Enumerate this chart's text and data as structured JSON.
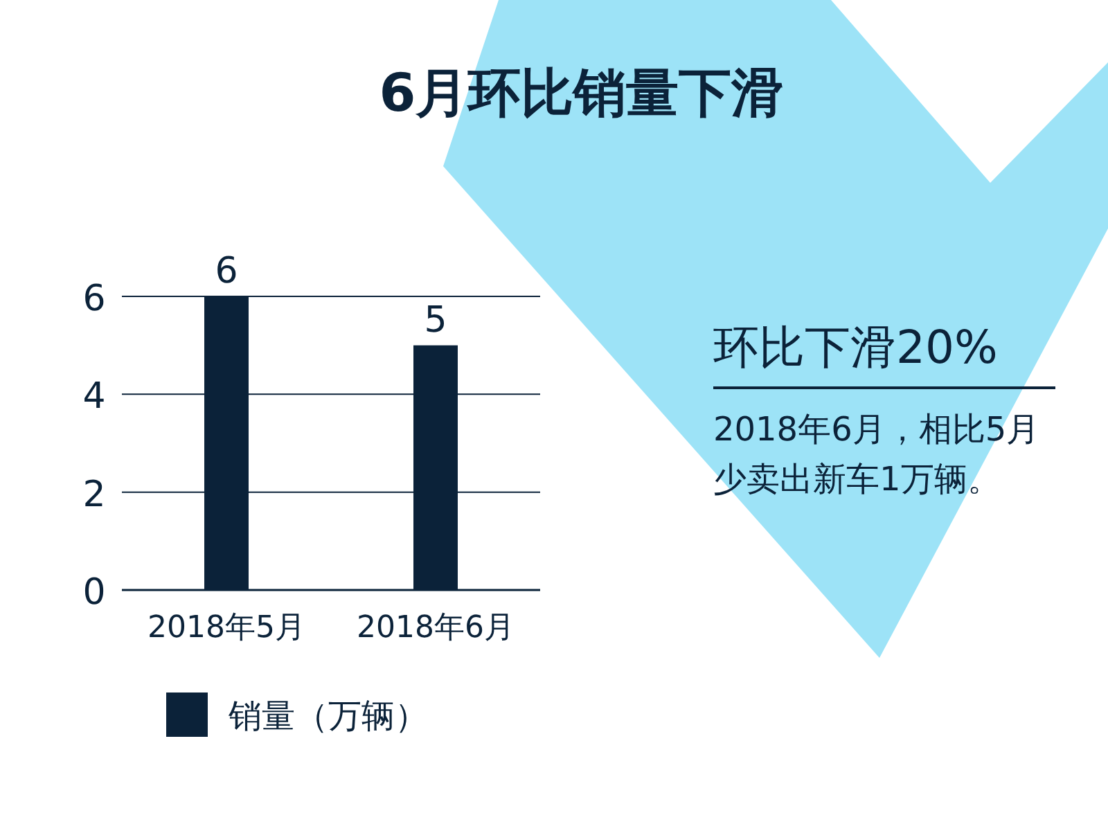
{
  "chart_data": {
    "type": "bar",
    "title": "6月环比销量下滑",
    "categories": [
      "2018年5月",
      "2018年6月"
    ],
    "series": [
      {
        "name": "销量（万辆）",
        "color": "#0b2239",
        "values": [
          6,
          5
        ]
      }
    ],
    "ylim": [
      0,
      6
    ],
    "yticks": [
      0,
      2,
      4,
      6
    ],
    "grid": "y",
    "data_labels": true,
    "legend": "bottom",
    "annotations": [
      "环比下滑20%",
      "2018年6月，相比5月少卖出新车1万辆。"
    ]
  }
}
